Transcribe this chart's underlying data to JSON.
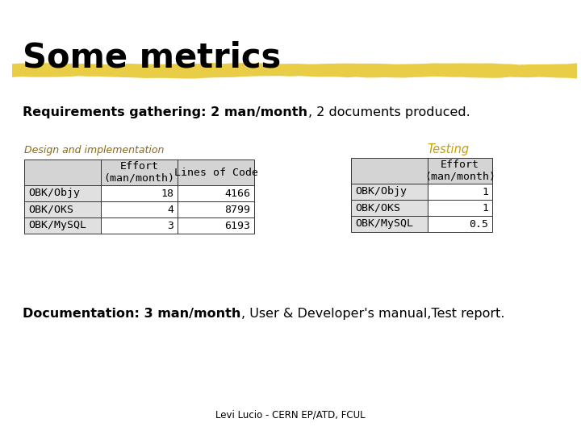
{
  "title": "Some metrics",
  "bg_color": "#ffffff",
  "highlight_color": "#E8C832",
  "req_text_bold": "Requirements gathering: 2 man/month",
  "req_text_normal": ", 2 documents produced.",
  "design_title": "Design and implementation",
  "design_headers_col1": "Effort\n(man/month)",
  "design_headers_col2": "Lines of Code",
  "design_rows": [
    [
      "OBK/Objy",
      "18",
      "4166"
    ],
    [
      "OBK/OKS",
      "4",
      "8799"
    ],
    [
      "OBK/MySQL",
      "3",
      "6193"
    ]
  ],
  "testing_title": "Testing",
  "testing_header": "Effort\n(man/month)",
  "testing_rows": [
    [
      "OBK/Objy",
      "1"
    ],
    [
      "OBK/OKS",
      "1"
    ],
    [
      "OBK/MySQL",
      "0.5"
    ]
  ],
  "doc_text_bold": "Documentation: 3 man/month",
  "doc_text_normal": ", User & Developer's manual,Test report.",
  "footer": "Levi Lucio - CERN EP/ATD, FCUL",
  "title_fontsize": 30,
  "body_fontsize": 11.5,
  "table_fontsize": 9.5,
  "footer_fontsize": 8.5,
  "header_bg": "#d4d4d4",
  "row_bg_label": "#e0e0e0",
  "row_bg_data": "#ffffff"
}
